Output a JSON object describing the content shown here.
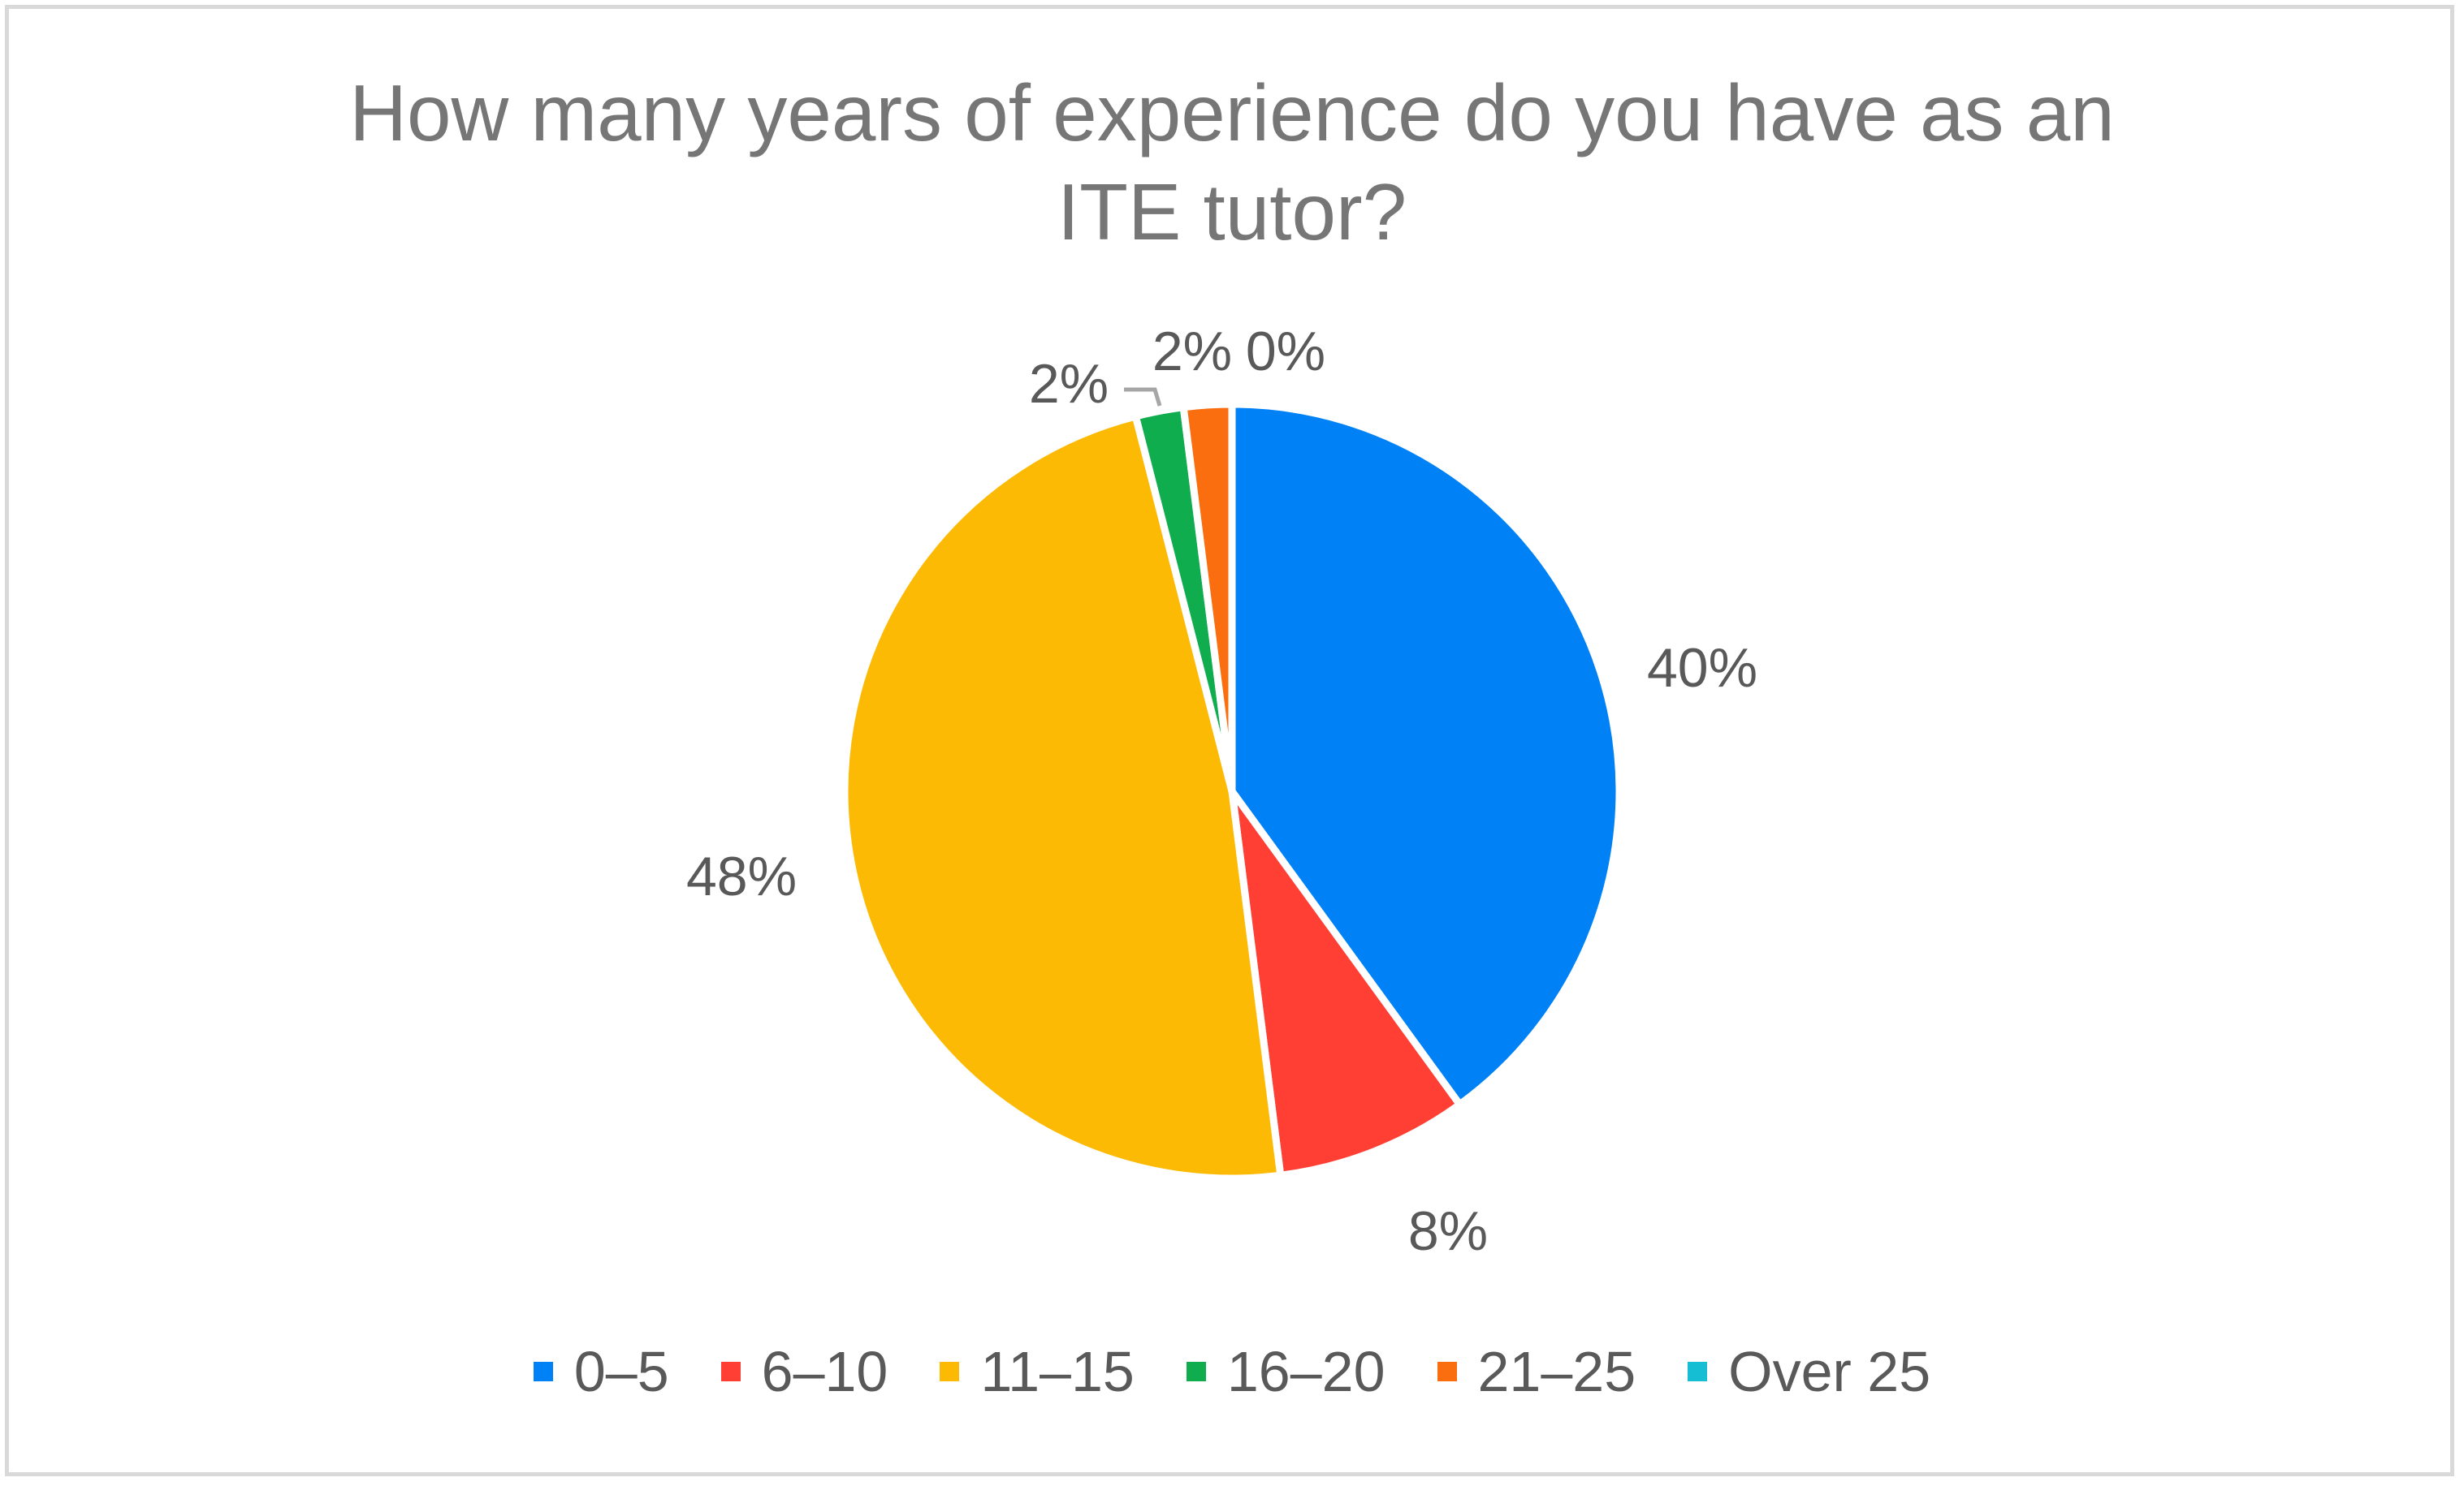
{
  "chart_data": {
    "type": "pie",
    "title": "How many years of experience do you have as an ITE tutor?",
    "title_lines": [
      "How many years of experience do you have as an",
      "ITE tutor?"
    ],
    "categories": [
      "0–5",
      "6–10",
      "11–15",
      "16–20",
      "21–25",
      "Over 25"
    ],
    "values": [
      40,
      8,
      48,
      2,
      2,
      0
    ],
    "labels": [
      "40%",
      "8%",
      "48%",
      "2%",
      "2%",
      "0%"
    ],
    "colors": [
      "#0082F6",
      "#FF3F33",
      "#FCBA04",
      "#10AD4F",
      "#FA6E10",
      "#16BED4"
    ],
    "legend_position": "bottom",
    "start_angle": "12 o'clock, clockwise"
  }
}
